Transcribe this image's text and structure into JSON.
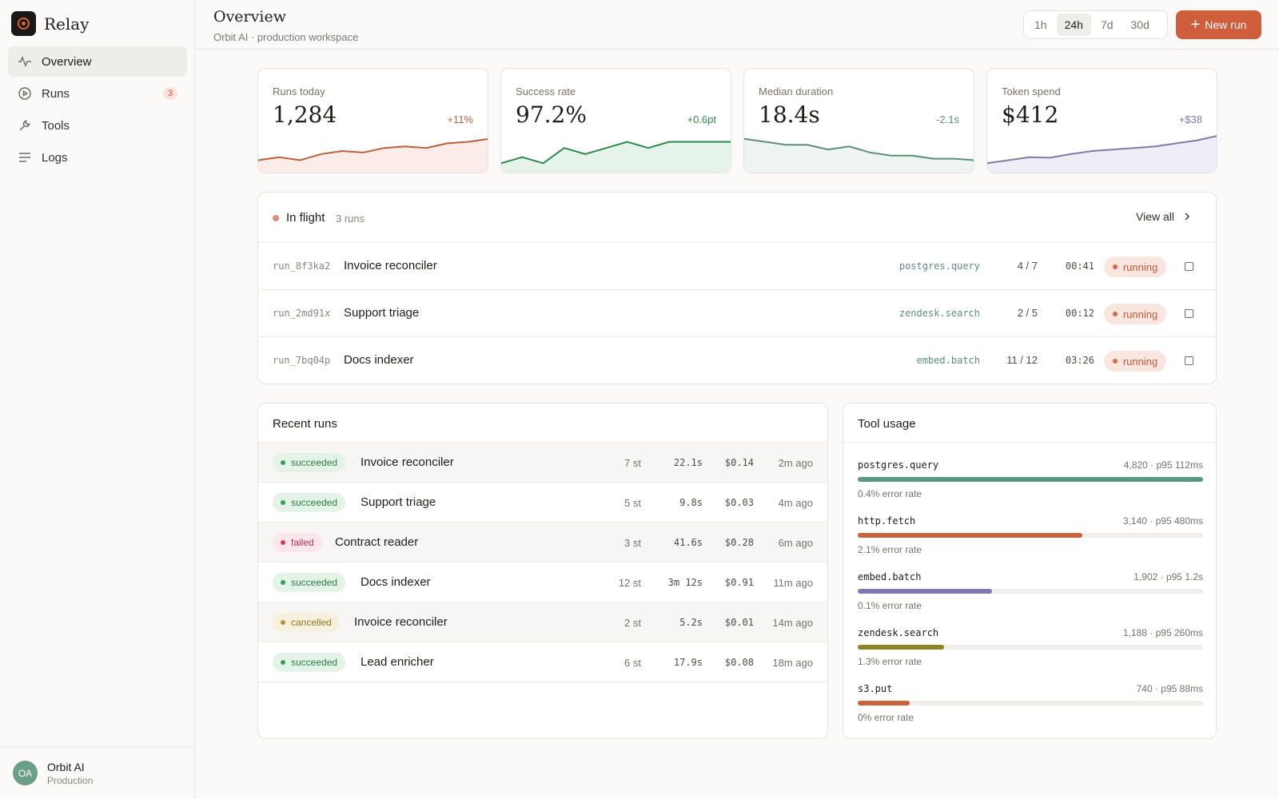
{
  "app": {
    "name": "Relay"
  },
  "sidebar": {
    "items": [
      {
        "label": "Overview",
        "icon": "activity-icon",
        "active": true
      },
      {
        "label": "Runs",
        "icon": "play-circle-icon",
        "badge": "3"
      },
      {
        "label": "Tools",
        "icon": "wrench-icon"
      },
      {
        "label": "Logs",
        "icon": "list-icon"
      }
    ],
    "workspace": {
      "initials": "OA",
      "name": "Orbit AI",
      "env": "Production"
    }
  },
  "header": {
    "title": "Overview",
    "subtitle": "Orbit AI · production workspace",
    "ranges": [
      "1h",
      "24h",
      "7d",
      "30d"
    ],
    "active_range": "24h",
    "new_run_label": "New run"
  },
  "stats": [
    {
      "label": "Runs today",
      "value": "1,284",
      "delta": "+11%",
      "color": "#b9603f",
      "fill": "#fbece8",
      "trend": [
        3,
        4,
        3,
        5,
        6,
        5.5,
        7,
        7.5,
        7,
        8.5,
        9,
        10
      ]
    },
    {
      "label": "Success rate",
      "value": "97.2%",
      "delta": "+0.6pt",
      "color": "#2f8a4c",
      "fill": "#e6f3ea",
      "trend": [
        2,
        4,
        2,
        7,
        5,
        7,
        9,
        7,
        9,
        9,
        9,
        9
      ]
    },
    {
      "label": "Median duration",
      "value": "18.4s",
      "delta": "-2.1s",
      "color": "#5c8f78",
      "fill": "#eef4f1",
      "trend": [
        10,
        9,
        8,
        8,
        6.5,
        7.5,
        5.5,
        4.5,
        4.5,
        3.5,
        3.5,
        3
      ]
    },
    {
      "label": "Token spend",
      "value": "$412",
      "delta": "+$38",
      "color": "#7f7aa8",
      "fill": "#efeef6",
      "trend": [
        2,
        3,
        4,
        3.8,
        5,
        6,
        6.5,
        7,
        7.5,
        8.5,
        9.5,
        11
      ]
    }
  ],
  "in_flight": {
    "title": "In flight",
    "count": "3 runs",
    "view_all": "View all",
    "rows": [
      {
        "id": "run_8f3ka2",
        "name": "Invoice reconciler",
        "tool": "postgres.query",
        "step": "4 / 7",
        "elapsed": "00:41",
        "status": "running"
      },
      {
        "id": "run_2md91x",
        "name": "Support triage",
        "tool": "zendesk.search",
        "step": "2 / 5",
        "elapsed": "00:12",
        "status": "running"
      },
      {
        "id": "run_7bq04p",
        "name": "Docs indexer",
        "tool": "embed.batch",
        "step": "11 / 12",
        "elapsed": "03:26",
        "status": "running"
      }
    ]
  },
  "recent_runs": {
    "title": "Recent runs",
    "rows": [
      {
        "status": "succeeded",
        "name": "Invoice reconciler",
        "steps": "7 st",
        "duration": "22.1s",
        "cost": "$0.14",
        "ago": "2m ago"
      },
      {
        "status": "succeeded",
        "name": "Support triage",
        "steps": "5 st",
        "duration": "9.8s",
        "cost": "$0.03",
        "ago": "4m ago"
      },
      {
        "status": "failed",
        "name": "Contract reader",
        "steps": "3 st",
        "duration": "41.6s",
        "cost": "$0.28",
        "ago": "6m ago"
      },
      {
        "status": "succeeded",
        "name": "Docs indexer",
        "steps": "12 st",
        "duration": "3m 12s",
        "cost": "$0.91",
        "ago": "11m ago"
      },
      {
        "status": "cancelled",
        "name": "Invoice reconciler",
        "steps": "2 st",
        "duration": "5.2s",
        "cost": "$0.01",
        "ago": "14m ago"
      },
      {
        "status": "succeeded",
        "name": "Lead enricher",
        "steps": "6 st",
        "duration": "17.9s",
        "cost": "$0.08",
        "ago": "18m ago"
      }
    ],
    "status_colors": {
      "succeeded": {
        "bg": "#e4f3e8",
        "fg": "#2f7d46",
        "dot": "#36a15a"
      },
      "failed": {
        "bg": "#fbe6ea",
        "fg": "#b53554",
        "dot": "#d0395d"
      },
      "cancelled": {
        "bg": "#f6f0dc",
        "fg": "#8f7626",
        "dot": "#b59533"
      }
    }
  },
  "tool_usage": {
    "title": "Tool usage",
    "items": [
      {
        "name": "postgres.query",
        "stats": "4,820 · p95 112ms",
        "error": "0.4% error rate",
        "share": 1.0,
        "color": "#5d9581"
      },
      {
        "name": "http.fetch",
        "stats": "3,140 · p95 480ms",
        "error": "2.1% error rate",
        "share": 0.65,
        "color": "#c7633f"
      },
      {
        "name": "embed.batch",
        "stats": "1,902 · p95 1.2s",
        "error": "0.1% error rate",
        "share": 0.39,
        "color": "#7e78b3"
      },
      {
        "name": "zendesk.search",
        "stats": "1,188 · p95 260ms",
        "error": "1.3% error rate",
        "share": 0.25,
        "color": "#8d8427"
      },
      {
        "name": "s3.put",
        "stats": "740 · p95 88ms",
        "error": "0% error rate",
        "share": 0.15,
        "color": "#c7633f"
      }
    ]
  }
}
